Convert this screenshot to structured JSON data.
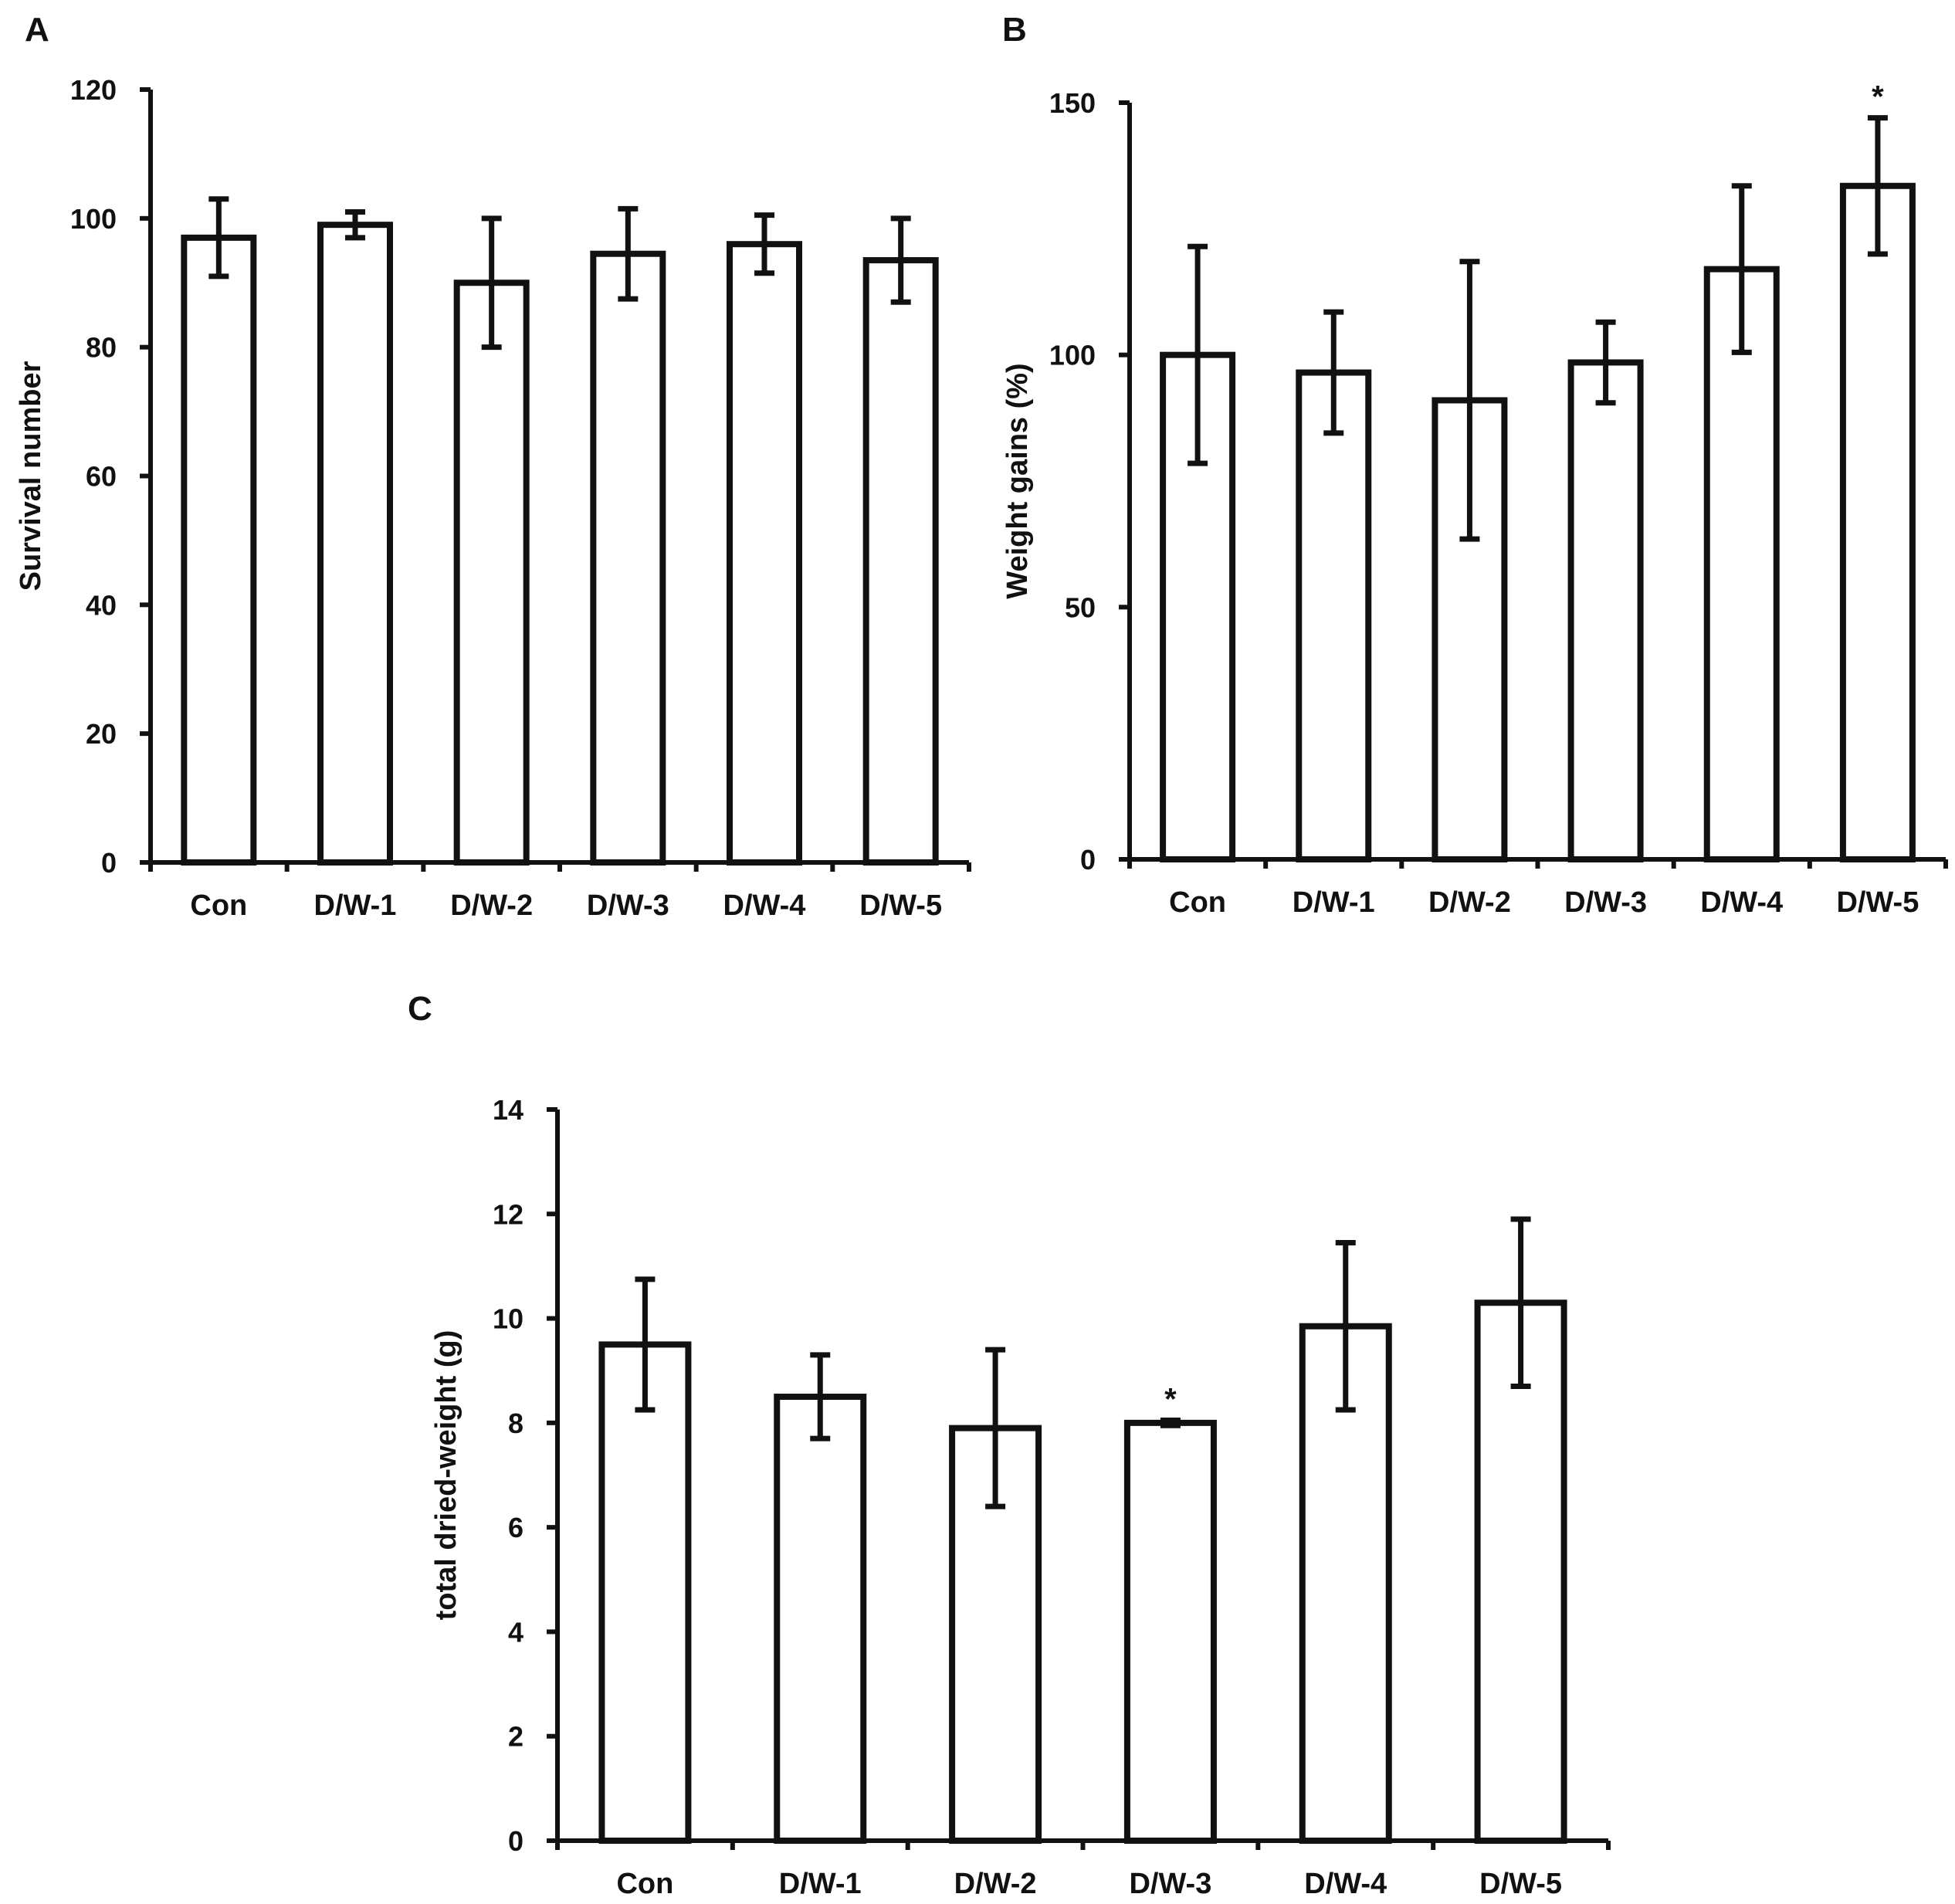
{
  "chart_data": [
    {
      "panel": "A",
      "type": "bar",
      "ylabel": "Survival number",
      "xlabel": "",
      "categories": [
        "Con",
        "D/W-1",
        "D/W-2",
        "D/W-3",
        "D/W-4",
        "D/W-5"
      ],
      "values": [
        97,
        99,
        90,
        94.5,
        96,
        93.5
      ],
      "errors": [
        6,
        2,
        10,
        7,
        4.5,
        6.5
      ],
      "significance": [
        "",
        "",
        "",
        "",
        "",
        ""
      ],
      "ylim": [
        0,
        120
      ],
      "yticks": [
        0,
        20,
        40,
        60,
        80,
        100,
        120
      ],
      "grid": false
    },
    {
      "panel": "B",
      "type": "bar",
      "ylabel": "Weight gains (%)",
      "xlabel": "",
      "categories": [
        "Con",
        "D/W-1",
        "D/W-2",
        "D/W-3",
        "D/W-4",
        "D/W-5"
      ],
      "values": [
        100,
        96.5,
        91,
        98.5,
        117,
        133.5
      ],
      "errors": [
        21.5,
        12,
        27.5,
        8,
        16.5,
        13.5
      ],
      "significance": [
        "",
        "",
        "",
        "",
        "",
        "*"
      ],
      "ylim": [
        0,
        150
      ],
      "yticks": [
        0,
        50,
        100,
        150
      ],
      "grid": false
    },
    {
      "panel": "C",
      "type": "bar",
      "ylabel": "total dried-weight (g)",
      "xlabel": "",
      "categories": [
        "Con",
        "D/W-1",
        "D/W-2",
        "D/W-3",
        "D/W-4",
        "D/W-5"
      ],
      "values": [
        9.5,
        8.5,
        7.9,
        8.0,
        9.85,
        10.3
      ],
      "errors": [
        1.25,
        0.8,
        1.5,
        0.05,
        1.6,
        1.6
      ],
      "significance": [
        "",
        "",
        "",
        "*",
        "",
        ""
      ],
      "ylim": [
        0,
        14
      ],
      "yticks": [
        0,
        2,
        4,
        6,
        8,
        10,
        12,
        14
      ],
      "grid": false
    }
  ]
}
